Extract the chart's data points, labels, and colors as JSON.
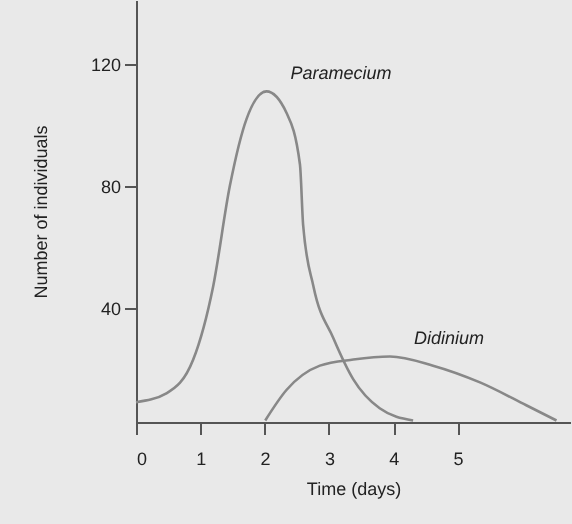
{
  "chart_data": {
    "type": "line",
    "xlabel": "Time (days)",
    "ylabel": "Number of individuals",
    "xlim": [
      0,
      6.75
    ],
    "ylim": [
      2.5,
      141
    ],
    "xticks": [
      0,
      1,
      2,
      3,
      4,
      5
    ],
    "yticks": [
      40,
      80,
      120
    ],
    "grid": false,
    "marker": "none",
    "line_style": "solid",
    "series": [
      {
        "name": "Paramecium",
        "color": "#888888",
        "x": [
          0,
          0.48,
          0.89,
          1.2,
          1.46,
          1.72,
          2.03,
          2.34,
          2.55,
          2.6,
          2.76,
          3.07,
          3.38,
          3.79,
          4.31
        ],
        "values": [
          9,
          12,
          23,
          47,
          80,
          102,
          111,
          104,
          87,
          67,
          47,
          30,
          16.5,
          7,
          3
        ]
      },
      {
        "name": "Didinium",
        "color": "#888888",
        "x": [
          2.01,
          2.34,
          2.86,
          3.38,
          3.95,
          4.62,
          5.35,
          6.07,
          6.54
        ],
        "values": [
          3,
          13,
          21,
          23,
          24,
          21,
          15.5,
          8,
          3
        ]
      }
    ]
  }
}
